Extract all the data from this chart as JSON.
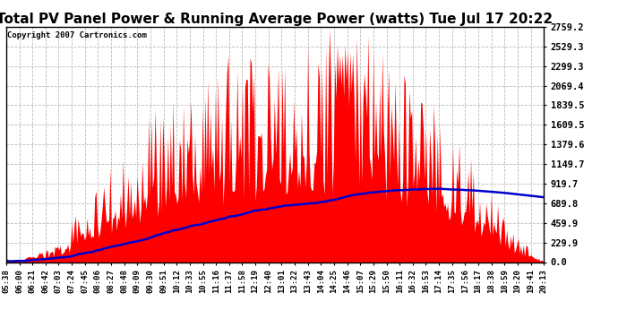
{
  "title": "Total PV Panel Power & Running Average Power (watts) Tue Jul 17 20:22",
  "copyright": "Copyright 2007 Cartronics.com",
  "bg_color": "#ffffff",
  "plot_bg_color": "#ffffff",
  "grid_color": "#bbbbbb",
  "fill_color": "#ff0000",
  "line_color": "#0000cc",
  "title_fontsize": 11,
  "y_labels": [
    0.0,
    229.9,
    459.9,
    689.8,
    919.7,
    1149.7,
    1379.6,
    1609.5,
    1839.5,
    2069.4,
    2299.3,
    2529.3,
    2759.2
  ],
  "x_labels": [
    "05:38",
    "06:00",
    "06:21",
    "06:42",
    "07:03",
    "07:24",
    "07:45",
    "08:06",
    "08:27",
    "08:48",
    "09:09",
    "09:30",
    "09:51",
    "10:12",
    "10:33",
    "10:55",
    "11:16",
    "11:37",
    "11:58",
    "12:19",
    "12:40",
    "13:01",
    "13:22",
    "13:43",
    "14:04",
    "14:25",
    "14:46",
    "15:07",
    "15:29",
    "15:50",
    "16:11",
    "16:32",
    "16:53",
    "17:14",
    "17:35",
    "17:56",
    "18:17",
    "18:38",
    "18:59",
    "19:20",
    "19:41",
    "20:13"
  ],
  "ymax": 2759.2,
  "ymin": 0.0,
  "n_points": 420
}
